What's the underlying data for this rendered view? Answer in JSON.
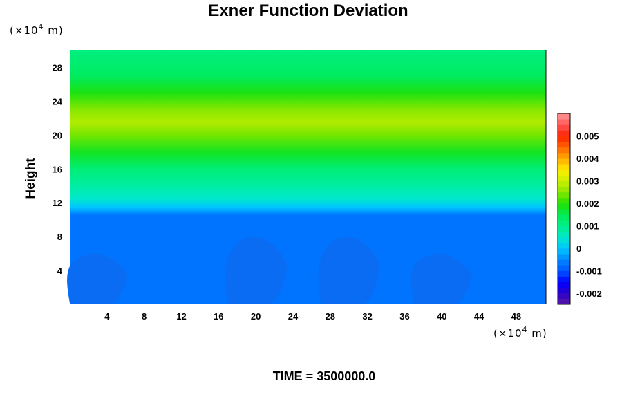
{
  "chart_data": {
    "type": "heatmap",
    "title": "Exner Function Deviation",
    "ylabel": "Height",
    "xlabel": "",
    "y_unit_base": "(×10",
    "y_unit_exp": "4",
    "y_unit_tail": " m)",
    "x_unit_base": "(×10",
    "x_unit_exp": "4",
    "x_unit_tail": " m)",
    "xlim": [
      0,
      51.2
    ],
    "ylim": [
      0,
      30
    ],
    "x_ticks": [
      4,
      8,
      12,
      16,
      20,
      24,
      28,
      32,
      36,
      40,
      44,
      48
    ],
    "y_ticks": [
      4,
      8,
      12,
      16,
      20,
      24,
      28
    ],
    "horizontal_profile": [
      {
        "height": 0,
        "value": -0.0007
      },
      {
        "height": 10.5,
        "value": -0.0007
      },
      {
        "height": 11.5,
        "value": 0.0
      },
      {
        "height": 12.5,
        "value": 0.0005
      },
      {
        "height": 14,
        "value": 0.0008
      },
      {
        "height": 16,
        "value": 0.0012
      },
      {
        "height": 18,
        "value": 0.0018
      },
      {
        "height": 20,
        "value": 0.0024
      },
      {
        "height": 21.5,
        "value": 0.0028
      },
      {
        "height": 23,
        "value": 0.0025
      },
      {
        "height": 25,
        "value": 0.0019
      },
      {
        "height": 27,
        "value": 0.0014
      },
      {
        "height": 30,
        "value": 0.0011
      }
    ],
    "anomalies": [
      {
        "name": "low-cell-1",
        "x_center": 3,
        "height_top": 6,
        "value": -0.001
      },
      {
        "name": "low-cell-2",
        "x_center": 20,
        "height_top": 8,
        "value": -0.001
      },
      {
        "name": "low-cell-3",
        "x_center": 30,
        "height_top": 8,
        "value": -0.001
      },
      {
        "name": "low-cell-4",
        "x_center": 40,
        "height_top": 6,
        "value": -0.001
      }
    ],
    "colorbar": {
      "min": -0.0025,
      "max": 0.006,
      "step": 0.00025,
      "tick_values": [
        0.005,
        0.004,
        0.003,
        0.002,
        0.001,
        0,
        -0.001,
        -0.002
      ],
      "tick_labels": [
        "0.005",
        "0.004",
        "0.003",
        "0.002",
        "0.001",
        "0",
        "-0.001",
        "-0.002"
      ]
    }
  },
  "footer": {
    "time_label": "TIME = 3500000.0"
  }
}
